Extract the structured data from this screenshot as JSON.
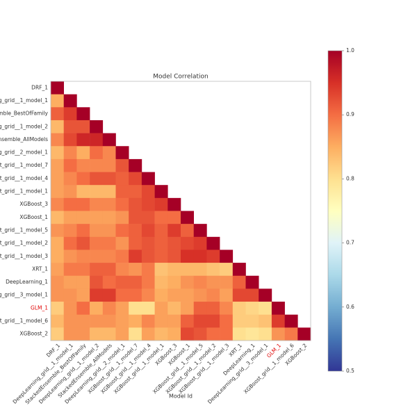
{
  "chart_data": {
    "type": "heatmap",
    "title": "Model Correlation",
    "x_label": "Model Id",
    "categories": [
      "DRF_1",
      "DeepLearning_grid__1_model_1",
      "StackedEnsemble_BestOfFamily",
      "DeepLearning_grid__1_model_2",
      "StackedEnsemble_AllModels",
      "DeepLearning_grid__2_model_1",
      "XGBoost_grid__1_model_7",
      "XGBoost_grid__1_model_4",
      "XGBoost_grid__1_model_1",
      "XGBoost_3",
      "XGBoost_1",
      "XGBoost_grid__1_model_5",
      "XGBoost_grid__1_model_2",
      "XGBoost_grid__1_model_3",
      "XRT_1",
      "DeepLearning_1",
      "DeepLearning_grid__3_model_1",
      "GLM_1",
      "XGBoost_grid__1_model_6",
      "XGBoost_2"
    ],
    "label_colors": [
      "#333",
      "#333",
      "#333",
      "#333",
      "#333",
      "#333",
      "#333",
      "#333",
      "#333",
      "#333",
      "#333",
      "#333",
      "#333",
      "#333",
      "#333",
      "#333",
      "#333",
      "#e00000",
      "#333",
      "#333"
    ],
    "values": [
      [
        1
      ],
      [
        0.85,
        1
      ],
      [
        0.91,
        0.94,
        1
      ],
      [
        0.84,
        0.92,
        0.92,
        1
      ],
      [
        0.88,
        0.93,
        0.96,
        0.96,
        1
      ],
      [
        0.84,
        0.88,
        0.85,
        0.9,
        0.88,
        1
      ],
      [
        0.86,
        0.9,
        0.88,
        0.88,
        0.88,
        0.92,
        1
      ],
      [
        0.86,
        0.88,
        0.9,
        0.92,
        0.92,
        0.91,
        0.93,
        1
      ],
      [
        0.86,
        0.87,
        0.84,
        0.84,
        0.84,
        0.91,
        0.91,
        0.93,
        1
      ],
      [
        0.88,
        0.9,
        0.9,
        0.88,
        0.88,
        0.9,
        0.92,
        0.93,
        0.94,
        1
      ],
      [
        0.84,
        0.86,
        0.86,
        0.86,
        0.86,
        0.87,
        0.92,
        0.92,
        0.9,
        0.9,
        1
      ],
      [
        0.87,
        0.88,
        0.9,
        0.87,
        0.87,
        0.9,
        0.91,
        0.93,
        0.91,
        0.94,
        0.91,
        1
      ],
      [
        0.85,
        0.9,
        0.92,
        0.89,
        0.89,
        0.87,
        0.91,
        0.92,
        0.91,
        0.92,
        0.93,
        0.94,
        1
      ],
      [
        0.85,
        0.87,
        0.88,
        0.88,
        0.88,
        0.89,
        0.94,
        0.92,
        0.91,
        0.92,
        0.95,
        0.95,
        0.94,
        1
      ],
      [
        0.86,
        0.89,
        0.89,
        0.91,
        0.91,
        0.88,
        0.87,
        0.89,
        0.83,
        0.84,
        0.84,
        0.84,
        0.83,
        0.82,
        1
      ],
      [
        0.87,
        0.86,
        0.86,
        0.92,
        0.9,
        0.91,
        0.91,
        0.89,
        0.84,
        0.85,
        0.87,
        0.88,
        0.87,
        0.87,
        0.91,
        1
      ],
      [
        0.87,
        0.87,
        0.86,
        0.94,
        0.94,
        0.9,
        0.9,
        0.88,
        0.85,
        0.86,
        0.86,
        0.87,
        0.88,
        0.86,
        0.93,
        0.93,
        1
      ],
      [
        0.82,
        0.87,
        0.9,
        0.85,
        0.88,
        0.86,
        0.8,
        0.8,
        0.86,
        0.84,
        0.86,
        0.91,
        0.91,
        0.88,
        0.82,
        0.81,
        0.8,
        1
      ],
      [
        0.84,
        0.87,
        0.87,
        0.87,
        0.87,
        0.86,
        0.85,
        0.88,
        0.86,
        0.86,
        0.91,
        0.93,
        0.93,
        0.9,
        0.82,
        0.82,
        0.83,
        0.94,
        1
      ],
      [
        0.82,
        0.87,
        0.87,
        0.84,
        0.84,
        0.86,
        0.8,
        0.86,
        0.84,
        0.85,
        0.93,
        0.92,
        0.9,
        0.9,
        0.8,
        0.79,
        0.8,
        0.87,
        0.89,
        1
      ]
    ],
    "colormap": [
      "#313695",
      "#4575b4",
      "#74add1",
      "#abd9e9",
      "#e0f3f8",
      "#ffffbf",
      "#fee090",
      "#fdae61",
      "#f46d43",
      "#d73027",
      "#a50026"
    ],
    "clim": [
      0.5,
      1
    ],
    "cticks": [
      0.5,
      0.6,
      0.7,
      0.8,
      0.9,
      {
        "value": 1,
        "label": "1.0"
      }
    ]
  }
}
